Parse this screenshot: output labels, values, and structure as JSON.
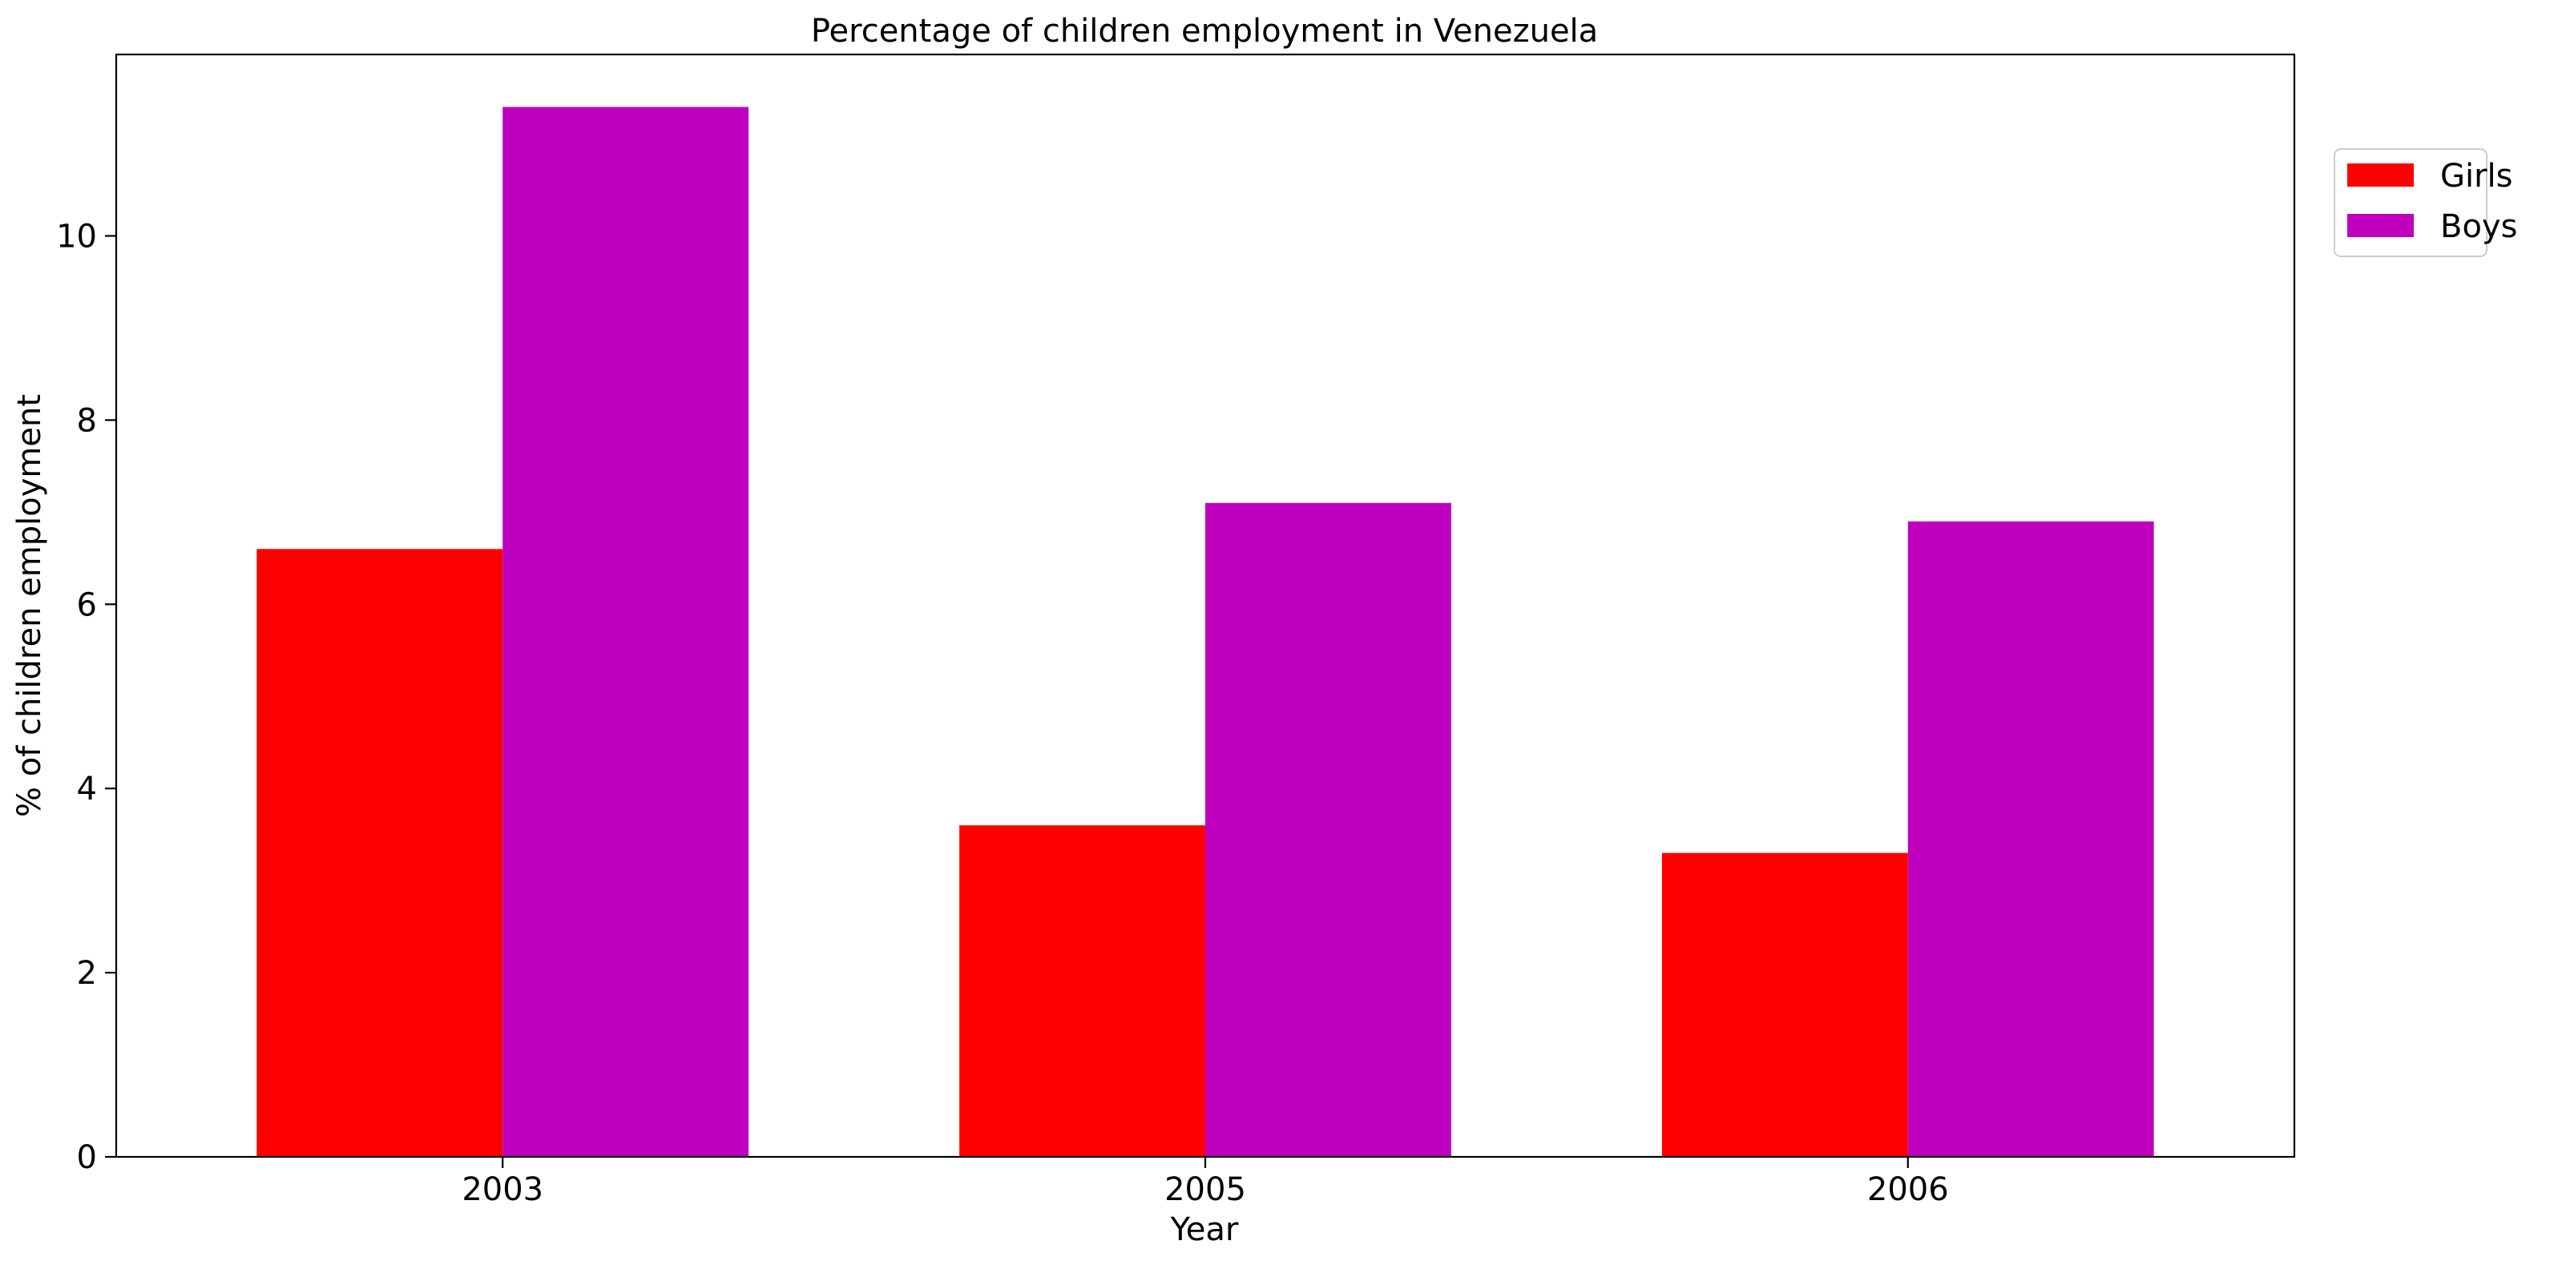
{
  "chart_data": {
    "type": "bar",
    "title": "Percentage of children employment in Venezuela",
    "xlabel": "Year",
    "ylabel": "% of children employment",
    "categories": [
      "2003",
      "2005",
      "2006"
    ],
    "series": [
      {
        "name": "Girls",
        "color": "#ff0000",
        "values": [
          6.6,
          3.6,
          3.3
        ]
      },
      {
        "name": "Boys",
        "color": "#bf00bf",
        "values": [
          11.4,
          7.1,
          6.9
        ]
      }
    ],
    "ylim": [
      0,
      11.97
    ],
    "yticks": [
      0,
      2,
      4,
      6,
      8,
      10
    ],
    "grid": false,
    "legend_position": "top-right, outside plot area"
  }
}
